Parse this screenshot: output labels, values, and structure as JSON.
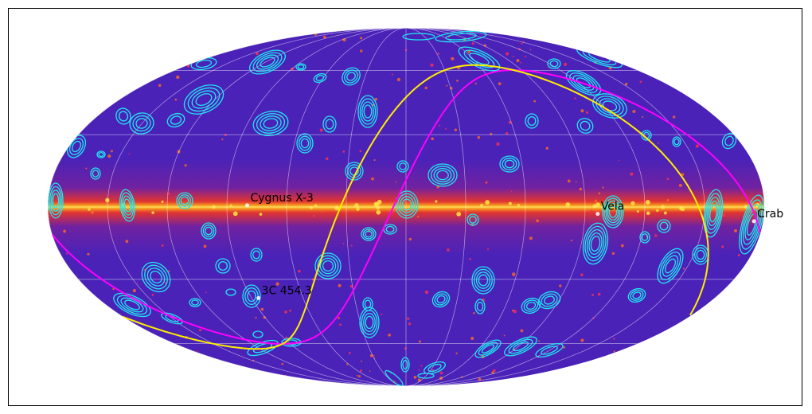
{
  "chart_data": {
    "type": "map",
    "projection": "mollweide",
    "coordinate_system": "galactic",
    "title": "",
    "xlabel": "",
    "ylabel": "",
    "graticule": {
      "visible": true,
      "longitude_step_deg": 30,
      "latitude_step_deg": 30
    },
    "colors": {
      "background": "#4a22b8",
      "plane_core": "#ff4a10",
      "plane_peak": "#ffd020",
      "contours": "#1ee8f0",
      "curve_magenta": "#ff00ff",
      "curve_yellow": "#ffee00",
      "grid": "#ffffff"
    },
    "annotations": [
      {
        "text": "Cygnus X-3",
        "l": 79.8,
        "b": 0.7
      },
      {
        "text": "Vela",
        "l": 263.6,
        "b": -2.8
      },
      {
        "text": "Crab",
        "l": 184.6,
        "b": -5.8
      },
      {
        "text": "3C 454.3",
        "l": 86.1,
        "b": -38.2
      }
    ],
    "curves": [
      {
        "color": "magenta",
        "type": "ecliptic"
      },
      {
        "color": "yellow",
        "type": "celestial_equator"
      }
    ]
  }
}
